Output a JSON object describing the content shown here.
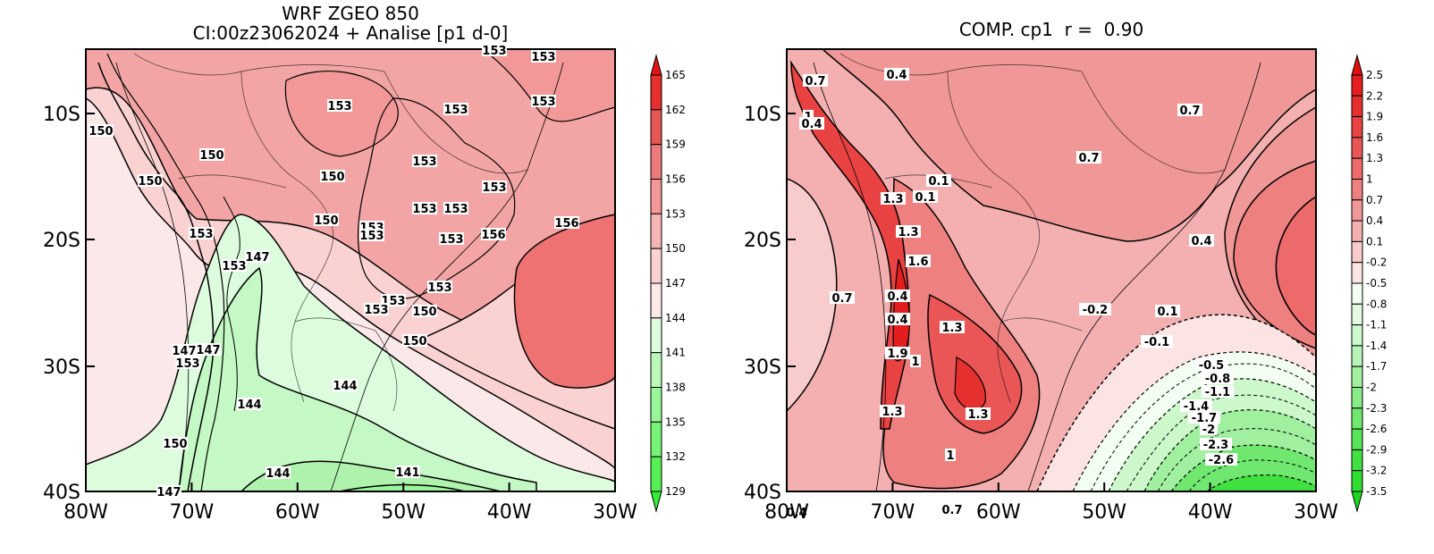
{
  "panels": [
    {
      "title_line1": "WRF ZGEO 850",
      "title_line2": "CI:00z23062024 + Analise  [p1 d-0]",
      "x_ticks": [
        "80W",
        "70W",
        "60W",
        "50W",
        "40W",
        "30W"
      ],
      "y_ticks": [
        "10S",
        "20S",
        "30S",
        "40S"
      ],
      "colorbar_levels": [
        "129",
        "132",
        "135",
        "138",
        "141",
        "144",
        "147",
        "150",
        "153",
        "156",
        "159",
        "162",
        "165"
      ],
      "colorbar_colors": [
        "#33ee33",
        "#55f055",
        "#77f477",
        "#99f699",
        "#bbf9bb",
        "#ddfcdd",
        "#fbe8e8",
        "#fbd2d2",
        "#f7b4b4",
        "#f29898",
        "#ec7a7a",
        "#e65656",
        "#e52e2e",
        "#e01414"
      ],
      "contour_labels": [
        "153",
        "153",
        "153",
        "153",
        "153",
        "150",
        "150",
        "150",
        "150",
        "153",
        "153",
        "153",
        "153",
        "153",
        "153",
        "153",
        "153",
        "156",
        "156",
        "153",
        "150",
        "147",
        "153",
        "150",
        "153",
        "153",
        "150",
        "147",
        "153",
        "144",
        "144",
        "150",
        "147",
        "147",
        "144",
        "141"
      ]
    },
    {
      "title": "COMP. cp1  r =  0.90",
      "x_ticks": [
        "80W",
        "70W",
        "60W",
        "50W",
        "40W",
        "30W"
      ],
      "y_ticks": [
        "10S",
        "20S",
        "30S",
        "40S"
      ],
      "colorbar_levels": [
        "2.5",
        "2.2",
        "1.9",
        "1.6",
        "1.3",
        "1",
        "0.7",
        "0.4",
        "0.1",
        "-0.2",
        "-0.5",
        "-0.8",
        "-1.1",
        "-1.4",
        "-1.7",
        "-2",
        "-2.3",
        "-2.6",
        "-2.9",
        "-3.2",
        "-3.5"
      ],
      "colorbar_colors": [
        "#e01010",
        "#e41e1e",
        "#e63030",
        "#e84242",
        "#ea5656",
        "#ec6a6a",
        "#ee8080",
        "#f09898",
        "#f4b0b0",
        "#f8cccc",
        "#fce4e4",
        "#f2fff2",
        "#e0fbe0",
        "#ccf8cc",
        "#b8f4b8",
        "#a0f0a0",
        "#88ec88",
        "#70e870",
        "#58e458",
        "#40e040",
        "#30dc30",
        "#20d820"
      ],
      "contour_labels": [
        "0.4",
        "0.7",
        "1",
        "0.4",
        "0.1",
        "0.7",
        "0.7",
        "0.4",
        "0.1",
        "1.3",
        "1.3",
        "1.6",
        "0.7",
        "0.4",
        "0.1",
        "0.4",
        "1.3",
        "-0.1",
        "-0.2",
        "1.9",
        "1",
        "-0.5",
        "-0.8",
        "-1.1",
        "-1.4",
        "-1.7",
        "-2",
        "1.3",
        "1.3",
        "-2.3",
        "-2.6",
        "1",
        "0.4",
        "0.7"
      ]
    }
  ]
}
